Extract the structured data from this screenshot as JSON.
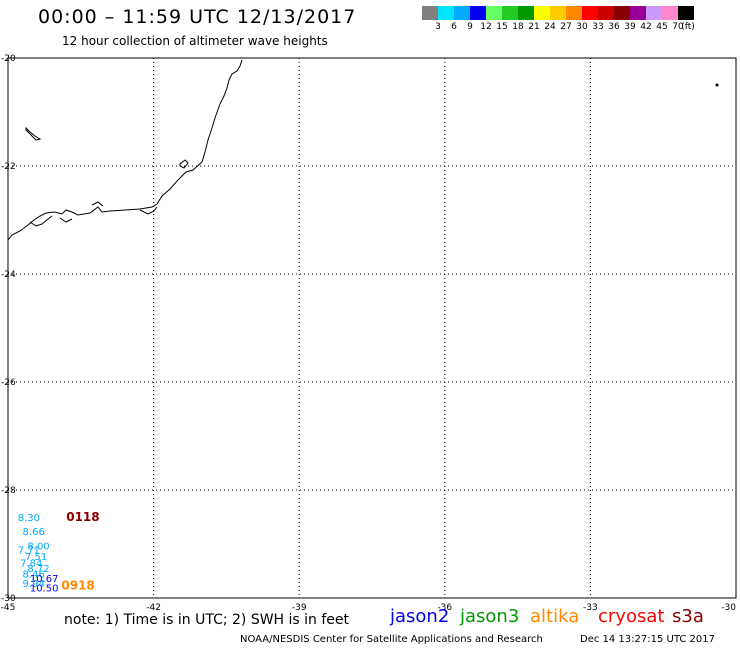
{
  "header": {
    "title": "00:00 – 11:59 UTC 12/13/2017",
    "subtitle": "12 hour collection of altimeter wave heights"
  },
  "legend": {
    "colors": [
      "#808080",
      "#00e5ff",
      "#00aaff",
      "#0000ee",
      "#66ff66",
      "#22cc22",
      "#009900",
      "#ffff00",
      "#ffcc00",
      "#ff8800",
      "#ff0000",
      "#cc0000",
      "#880000",
      "#990099",
      "#cc99ff",
      "#ff88cc",
      "#000000"
    ],
    "labels": [
      "3",
      "6",
      "9",
      "12",
      "15",
      "18",
      "21",
      "24",
      "27",
      "30",
      "33",
      "36",
      "39",
      "42",
      "45",
      "70",
      "(ft)"
    ]
  },
  "map": {
    "x_ticks": [
      "-45",
      "-42",
      "-39",
      "-36",
      "-33",
      "-30"
    ],
    "y_ticks": [
      "-20",
      "-22",
      "-24",
      "-26",
      "-28",
      "-30"
    ],
    "lon_range": [
      -45,
      -30
    ],
    "lat_range": [
      -30,
      -20
    ],
    "observations": [
      {
        "text": "8.30",
        "lon": -44.8,
        "lat": -28.57,
        "color": "#00aaff"
      },
      {
        "text": "0118",
        "lon": -43.8,
        "lat": -28.57,
        "color": "#880000"
      },
      {
        "text": "8.66",
        "lon": -44.7,
        "lat": -28.83,
        "color": "#00aaff"
      },
      {
        "text": "8.00",
        "lon": -44.6,
        "lat": -29.1,
        "color": "#00aaff"
      },
      {
        "text": "7.71",
        "lon": -44.8,
        "lat": -29.18,
        "color": "#00aaff"
      },
      {
        "text": "7.51",
        "lon": -44.65,
        "lat": -29.3,
        "color": "#00aaff"
      },
      {
        "text": "7.84",
        "lon": -44.75,
        "lat": -29.42,
        "color": "#00aaff"
      },
      {
        "text": "8.72",
        "lon": -44.6,
        "lat": -29.52,
        "color": "#00aaff"
      },
      {
        "text": "8.46",
        "lon": -44.7,
        "lat": -29.62,
        "color": "#00aaff"
      },
      {
        "text": "10.67",
        "lon": -44.55,
        "lat": -29.7,
        "color": "#0000ee"
      },
      {
        "text": "9.94",
        "lon": -44.7,
        "lat": -29.8,
        "color": "#00aaff"
      },
      {
        "text": "10.50",
        "lon": -44.55,
        "lat": -29.88,
        "color": "#0000ee"
      },
      {
        "text": "0918",
        "lon": -43.9,
        "lat": -29.84,
        "color": "#ff8800"
      }
    ]
  },
  "footer": {
    "note": "note:  1) Time is in UTC;  2) SWH is in feet",
    "satellites": [
      {
        "name": "jason2",
        "color": "#0000ee"
      },
      {
        "name": "jason3",
        "color": "#009900"
      },
      {
        "name": "altika",
        "color": "#ff8800"
      },
      {
        "name": "cryosat",
        "color": "#ff0000"
      },
      {
        "name": "s3a",
        "color": "#880000"
      }
    ],
    "credit": "NOAA/NESDIS Center for Satellite Applications and Research",
    "timestamp": "Dec 14 13:27:15 UTC 2017"
  }
}
